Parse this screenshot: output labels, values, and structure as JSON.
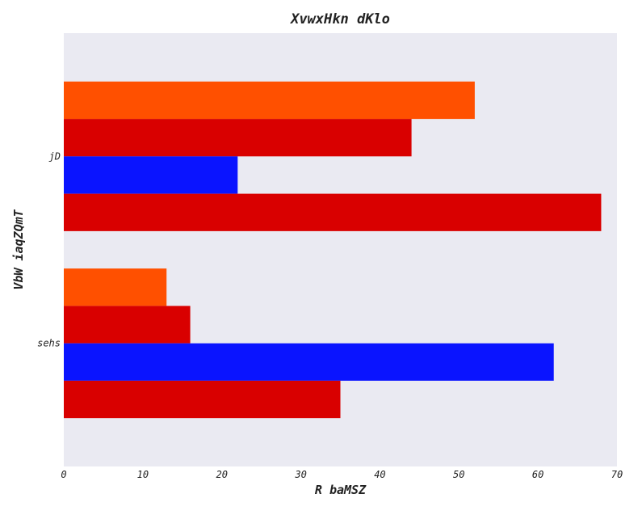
{
  "chart_data": {
    "type": "bar",
    "orientation": "horizontal",
    "title": "XvwxHkn  dKlo",
    "xlabel": "R baMSZ",
    "ylabel": "VbW iaqZQmT",
    "categories": [
      "jD",
      "sehs"
    ],
    "series": [
      {
        "color": "#FF5000",
        "values": [
          52,
          13
        ]
      },
      {
        "color": "#D90000",
        "values": [
          44,
          16
        ]
      },
      {
        "color": "#0A14FF",
        "values": [
          22,
          62
        ]
      },
      {
        "color": "#D90000",
        "values": [
          68,
          35
        ]
      }
    ],
    "xlim": [
      0,
      70
    ],
    "xticks": [
      0,
      10,
      20,
      30,
      40,
      50,
      60,
      70
    ],
    "grid": false,
    "background": "#EAEAF2",
    "legend": "none"
  }
}
